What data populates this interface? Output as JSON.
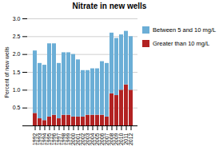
{
  "chart_data": {
    "type": "bar",
    "stacked": true,
    "title": "Nitrate in new wells",
    "ylabel": "Percent of new wells",
    "categories": [
      "1992",
      "1993",
      "1994",
      "1995",
      "1996",
      "1997",
      "1998",
      "1999",
      "2000",
      "2001",
      "2002",
      "2003",
      "2004",
      "2005",
      "2006",
      "2007",
      "2008",
      "2009",
      "2010",
      "2011",
      "2012"
    ],
    "series": [
      {
        "name": "Greater than 10 mg/L",
        "color": "#b22222",
        "values": [
          0.35,
          0.2,
          0.15,
          0.25,
          0.3,
          0.2,
          0.3,
          0.3,
          0.25,
          0.25,
          0.25,
          0.3,
          0.3,
          0.3,
          0.3,
          0.25,
          0.9,
          0.85,
          1.0,
          1.15,
          1.0
        ]
      },
      {
        "name": "Between 5 and 10 mg/L",
        "color": "#6baed6",
        "values": [
          1.75,
          1.55,
          1.55,
          2.05,
          2.0,
          1.55,
          1.75,
          1.75,
          1.75,
          1.6,
          1.3,
          1.25,
          1.3,
          1.3,
          1.5,
          1.5,
          1.7,
          1.6,
          1.55,
          1.5,
          1.5
        ]
      }
    ],
    "ylim": [
      0,
      3.0
    ],
    "yticks": [
      {
        "value": 0,
        "label": ""
      },
      0.5,
      {
        "value": 1.0,
        "label": "1.0"
      },
      1.5,
      {
        "value": 2.0,
        "label": "2.0"
      },
      2.5,
      {
        "value": 3.0,
        "label": "3.0"
      }
    ],
    "grid": true,
    "legend": "right"
  }
}
